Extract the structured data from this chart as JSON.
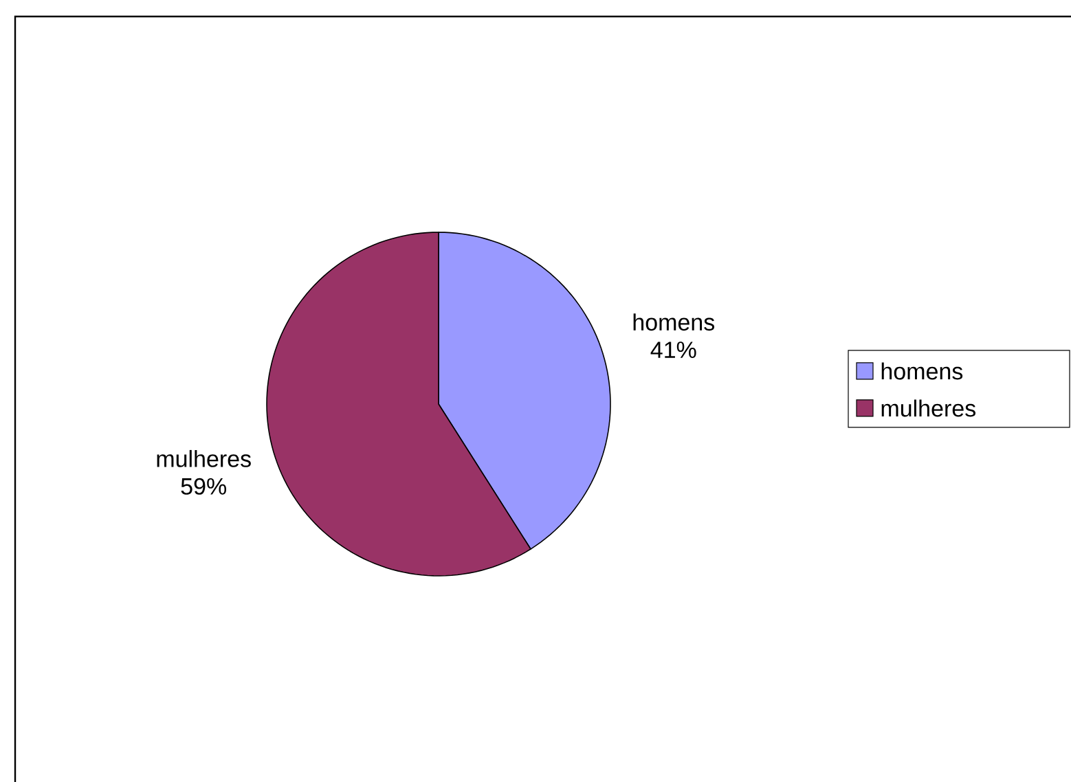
{
  "chart_data": {
    "type": "pie",
    "categories": [
      "homens",
      "mulheres"
    ],
    "values": [
      41,
      59
    ],
    "value_labels": [
      "41%",
      "59%"
    ],
    "colors": [
      "#9999ff",
      "#993366"
    ],
    "legend": "right"
  }
}
